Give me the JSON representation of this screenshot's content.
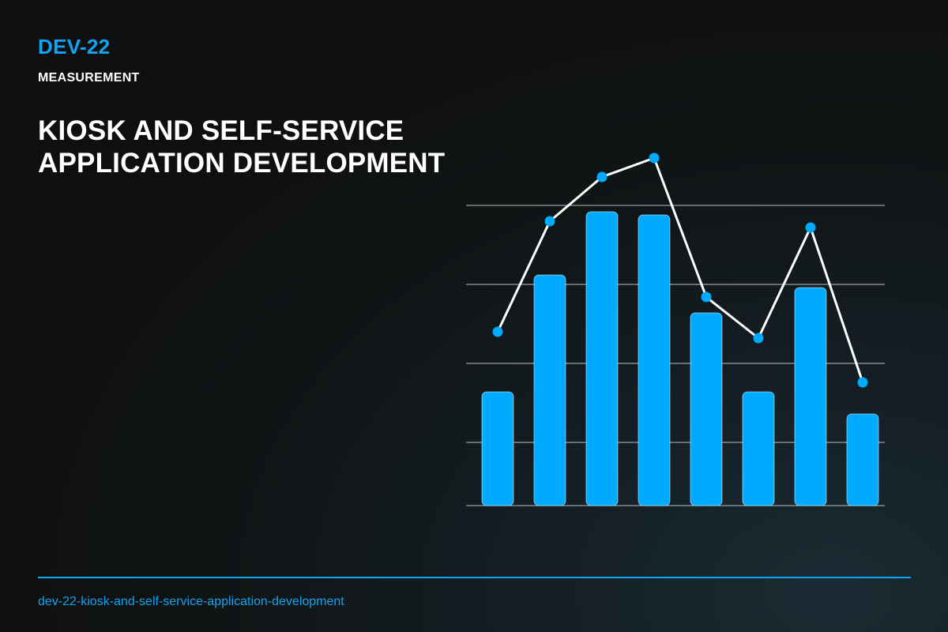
{
  "header": {
    "code": "DEV-22",
    "category": "MEASUREMENT",
    "title_lines": [
      "KIOSK AND SELF-SERVICE",
      "APPLICATION DEVELOPMENT"
    ]
  },
  "footer": {
    "slug": "dev-22-kiosk-and-self-service-application-development"
  },
  "colors": {
    "accent": "#12a4f0",
    "bar": "#00aaff",
    "line": "#ffffff",
    "gridline": "#d8dde0"
  },
  "chart_data": {
    "type": "bar",
    "categories": [
      "",
      "",
      "",
      "",
      "",
      "",
      "",
      ""
    ],
    "series": [
      {
        "type": "bar",
        "values": [
          36,
          73,
          93,
          92,
          61,
          36,
          69,
          29
        ]
      },
      {
        "type": "line",
        "values": [
          55,
          90,
          104,
          110,
          66,
          53,
          88,
          39
        ]
      }
    ],
    "title": "",
    "xlabel": "",
    "ylabel": "",
    "ylim": [
      0,
      95
    ],
    "grid": true,
    "legend": "none"
  }
}
